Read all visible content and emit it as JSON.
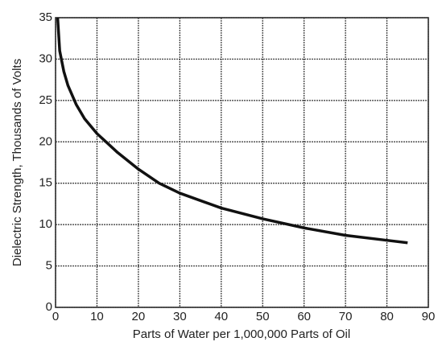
{
  "chart_data": {
    "type": "line",
    "x_label": "Parts of Water per 1,000,000 Parts of Oil",
    "y_label": "Dielectric Strength, Thousands of Volts",
    "x": [
      0.5,
      1,
      2,
      3,
      5,
      7,
      10,
      15,
      20,
      25,
      30,
      40,
      50,
      60,
      70,
      80,
      85
    ],
    "series": [
      {
        "color": "#111111",
        "values": [
          35,
          31,
          28.5,
          26.8,
          24.5,
          22.8,
          21,
          18.7,
          16.7,
          15,
          13.8,
          12,
          10.7,
          9.6,
          8.7,
          8.1,
          7.8
        ]
      }
    ],
    "xlim": [
      0,
      90
    ],
    "ylim": [
      0,
      35
    ],
    "xticks": [
      0,
      10,
      20,
      30,
      40,
      50,
      60,
      70,
      80,
      90
    ],
    "yticks": [
      0,
      5,
      10,
      15,
      20,
      25,
      30,
      35
    ],
    "grid": true
  }
}
